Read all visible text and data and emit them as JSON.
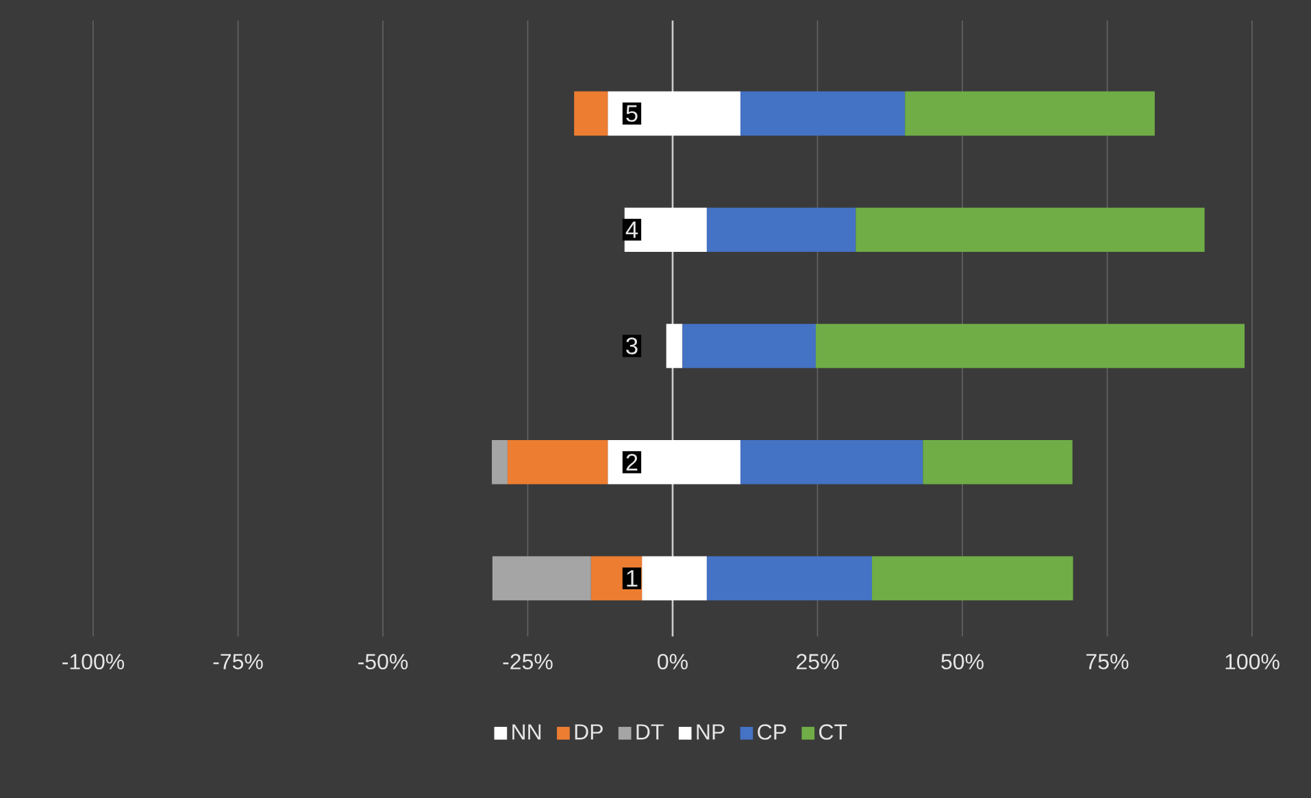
{
  "chart_data": {
    "type": "bar",
    "orientation": "horizontal",
    "stacked": true,
    "categories": [
      "5",
      "4",
      "3",
      "2",
      "1"
    ],
    "series": [
      {
        "name": "NN",
        "color": "#ffffff",
        "values": [
          -11.2,
          -8.3,
          -1.1,
          -11.2,
          -5.3
        ]
      },
      {
        "name": "DP",
        "color": "#ed7d31",
        "values": [
          -5.8,
          0,
          0,
          -17.3,
          -8.8
        ]
      },
      {
        "name": "DT",
        "color": "#a5a5a5",
        "values": [
          0,
          0,
          0,
          -2.7,
          -17
        ]
      },
      {
        "name": "NP",
        "color": "#ffffff",
        "values": [
          11.7,
          5.9,
          1.7,
          11.7,
          5.9
        ]
      },
      {
        "name": "CP",
        "color": "#4472c4",
        "values": [
          28.4,
          25.7,
          23,
          31.5,
          28.5
        ]
      },
      {
        "name": "CT",
        "color": "#70ad47",
        "values": [
          43.1,
          60.2,
          74,
          25.8,
          34.7
        ]
      }
    ],
    "xlim": [
      -100,
      100
    ],
    "xticks": [
      {
        "value": -100,
        "label": "-100%"
      },
      {
        "value": -75,
        "label": "-75%"
      },
      {
        "value": -50,
        "label": "-50%"
      },
      {
        "value": -25,
        "label": "-25%"
      },
      {
        "value": 0,
        "label": "0%"
      },
      {
        "value": 25,
        "label": "25%"
      },
      {
        "value": 50,
        "label": "50%"
      },
      {
        "value": 75,
        "label": "75%"
      },
      {
        "value": 100,
        "label": "100%"
      }
    ],
    "grid": "x",
    "legend": "bottom"
  }
}
